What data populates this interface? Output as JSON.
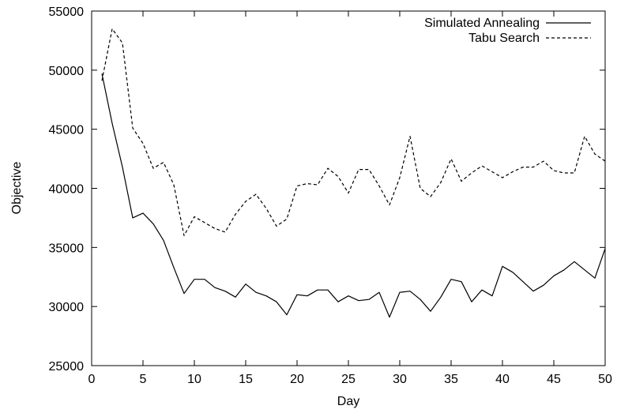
{
  "chart_data": {
    "type": "line",
    "xlabel": "Day",
    "ylabel": "Objective",
    "xlim": [
      0,
      50
    ],
    "ylim": [
      25000,
      55000
    ],
    "xticks": [
      0,
      5,
      10,
      15,
      20,
      25,
      30,
      35,
      40,
      45,
      50
    ],
    "yticks": [
      25000,
      30000,
      35000,
      40000,
      45000,
      50000,
      55000
    ],
    "grid": false,
    "legend_position": "top-right",
    "series": [
      {
        "name": "Simulated Annealing",
        "style": "solid",
        "color": "#000000",
        "x": [
          1,
          2,
          3,
          4,
          5,
          6,
          7,
          8,
          9,
          10,
          11,
          12,
          13,
          14,
          15,
          16,
          17,
          18,
          19,
          20,
          21,
          22,
          23,
          24,
          25,
          26,
          27,
          28,
          29,
          30,
          31,
          32,
          33,
          34,
          35,
          36,
          37,
          38,
          39,
          40,
          41,
          42,
          43,
          44,
          45,
          46,
          47,
          48,
          49,
          50
        ],
        "values": [
          49700,
          45500,
          41800,
          37500,
          37900,
          37000,
          35600,
          33300,
          31100,
          32300,
          32300,
          31600,
          31300,
          30800,
          31900,
          31200,
          30900,
          30400,
          29300,
          31000,
          30900,
          31400,
          31400,
          30400,
          30900,
          30500,
          30600,
          31200,
          29100,
          31200,
          31300,
          30600,
          29600,
          30800,
          32300,
          32100,
          30400,
          31400,
          30900,
          33400,
          32900,
          32100,
          31300,
          31800,
          32600,
          33100,
          33800,
          33100,
          32400,
          34900
        ]
      },
      {
        "name": "Tabu Search",
        "style": "dashed",
        "color": "#000000",
        "x": [
          1,
          2,
          3,
          4,
          5,
          6,
          7,
          8,
          9,
          10,
          11,
          12,
          13,
          14,
          15,
          16,
          17,
          18,
          19,
          20,
          21,
          22,
          23,
          24,
          25,
          26,
          27,
          28,
          29,
          30,
          31,
          32,
          33,
          34,
          35,
          36,
          37,
          38,
          39,
          40,
          41,
          42,
          43,
          44,
          45,
          46,
          47,
          48,
          49,
          50
        ],
        "values": [
          49100,
          53500,
          52300,
          45100,
          43800,
          41700,
          42200,
          40300,
          36000,
          37600,
          37100,
          36600,
          36300,
          37800,
          38900,
          39500,
          38300,
          36800,
          37400,
          40200,
          40400,
          40300,
          41700,
          41000,
          39600,
          41600,
          41600,
          40200,
          38600,
          40900,
          44400,
          40000,
          39300,
          40500,
          42500,
          40600,
          41300,
          41900,
          41400,
          40900,
          41400,
          41800,
          41800,
          42300,
          41500,
          41300,
          41300,
          44400,
          42900,
          42300
        ]
      }
    ]
  }
}
